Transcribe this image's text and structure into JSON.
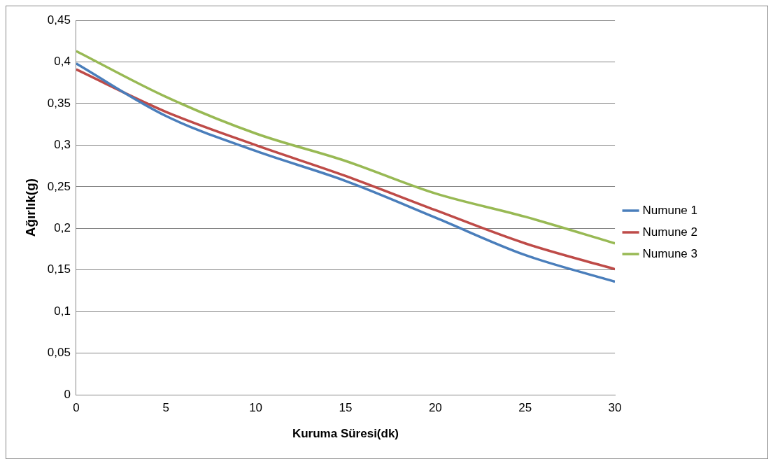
{
  "chart_data": {
    "type": "line",
    "xlabel": "Kuruma Süresi(dk)",
    "ylabel": "Ağırlık(g)",
    "x": [
      0,
      5,
      10,
      15,
      20,
      25,
      30
    ],
    "series": [
      {
        "name": "Numune 1",
        "color": "#4a7ebb",
        "values": [
          0.398,
          0.335,
          0.293,
          0.257,
          0.213,
          0.168,
          0.136
        ]
      },
      {
        "name": "Numune 2",
        "color": "#be4b48",
        "values": [
          0.391,
          0.34,
          0.3,
          0.263,
          0.222,
          0.182,
          0.151
        ]
      },
      {
        "name": "Numune 3",
        "color": "#98b954",
        "values": [
          0.413,
          0.358,
          0.314,
          0.281,
          0.242,
          0.214,
          0.182
        ]
      }
    ],
    "xlim": [
      0,
      30
    ],
    "xticks": [
      0,
      5,
      10,
      15,
      20,
      25,
      30
    ],
    "ylim": [
      0,
      0.45
    ],
    "yticks": [
      0,
      {
        "value": 0.05,
        "label": "0,05"
      },
      {
        "value": 0.1,
        "label": "0,1"
      },
      {
        "value": 0.15,
        "label": "0,15"
      },
      {
        "value": 0.2,
        "label": "0,2"
      },
      {
        "value": 0.25,
        "label": "0,25"
      },
      {
        "value": 0.3,
        "label": "0,3"
      },
      {
        "value": 0.35,
        "label": "0,35"
      },
      {
        "value": 0.4,
        "label": "0,4"
      },
      {
        "value": 0.45,
        "label": "0,45"
      }
    ],
    "grid": "y",
    "legend": "right",
    "marker": "none",
    "line_style": "solid"
  }
}
